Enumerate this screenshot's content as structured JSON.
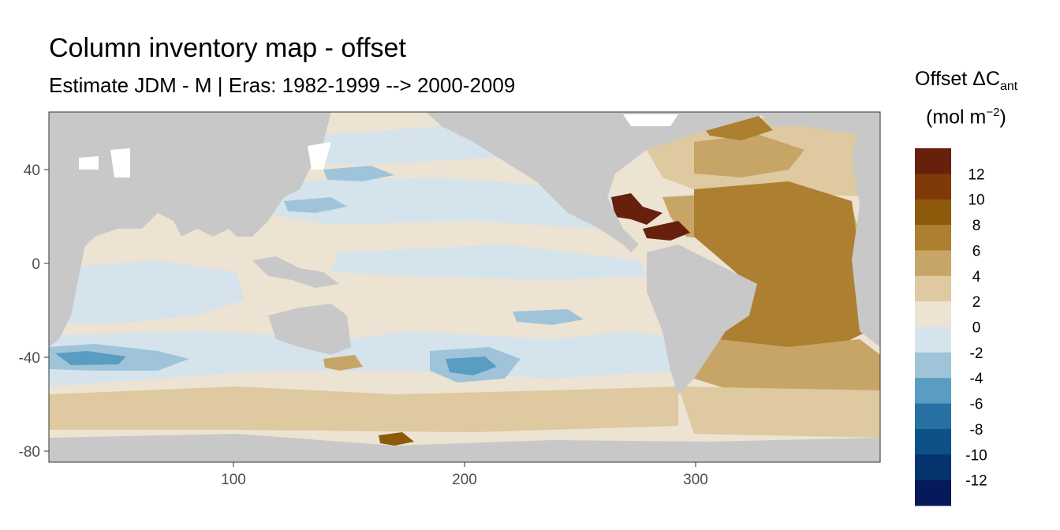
{
  "chart_data": {
    "type": "heatmap",
    "title": "Column inventory map - offset",
    "subtitle": "Estimate JDM - M | Eras: 1982-1999 --> 2000-2009",
    "x_range": [
      20,
      380
    ],
    "y_range": [
      -85,
      65
    ],
    "x_ticks": [
      100,
      200,
      300
    ],
    "y_ticks": [
      40,
      0,
      -40,
      -80
    ],
    "legend": {
      "title_main": "Offset ΔC",
      "title_sub": "ant",
      "unit_main": "(mol m",
      "unit_sup": "−2",
      "unit_close": ")",
      "breaks": [
        "12",
        "10",
        "8",
        "6",
        "4",
        "2",
        "0",
        "-2",
        "-4",
        "-6",
        "-8",
        "-10",
        "-12"
      ],
      "colors": [
        "#67200b",
        "#7f3a07",
        "#8c5a0a",
        "#ad7f30",
        "#c7a566",
        "#dec9a0",
        "#ede3d2",
        "#d5e3ed",
        "#9fc4da",
        "#5a9dc2",
        "#2771a3",
        "#0e5088",
        "#05346e",
        "#06195a"
      ]
    },
    "regions": [
      {
        "name": "North Atlantic",
        "offset_approx": "2 to 6"
      },
      {
        "name": "Gulf of Mexico / Caribbean",
        "offset_approx": ">12"
      },
      {
        "name": "Tropical & South Atlantic",
        "offset_approx": "6 to 8"
      },
      {
        "name": "Pacific",
        "offset_approx": "-2 to 2"
      },
      {
        "name": "Southern Ocean (Indian/Pacific sector)",
        "offset_approx": "-6 to -2"
      }
    ]
  }
}
